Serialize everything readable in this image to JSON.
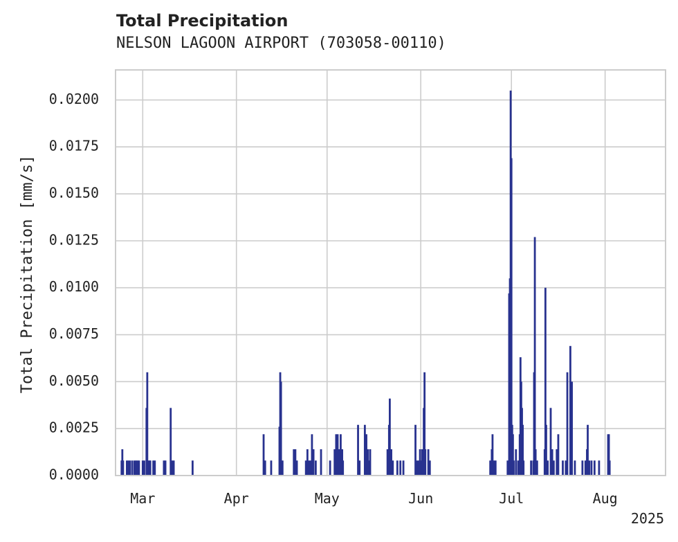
{
  "title": "Total Precipitation",
  "subtitle": "NELSON LAGOON AIRPORT (703058-00110)",
  "chart_data": {
    "type": "bar",
    "ylabel": "Total Precipitation [mm/s]",
    "xlabel": "",
    "ylim": [
      0,
      0.0216
    ],
    "xlim": [
      "2025-02-20",
      "2025-08-21"
    ],
    "grid": true,
    "color": "#28328f",
    "year_label": "2025",
    "x_ticks": [
      {
        "date": "2025-03-01",
        "label": "Mar"
      },
      {
        "date": "2025-04-01",
        "label": "Apr"
      },
      {
        "date": "2025-05-01",
        "label": "May"
      },
      {
        "date": "2025-06-01",
        "label": "Jun"
      },
      {
        "date": "2025-07-01",
        "label": "Jul"
      },
      {
        "date": "2025-08-01",
        "label": "Aug"
      }
    ],
    "y_ticks": [
      "0.0000",
      "0.0025",
      "0.0050",
      "0.0075",
      "0.0100",
      "0.0125",
      "0.0150",
      "0.0175",
      "0.0200"
    ],
    "series": [
      {
        "values": [
          [
            "2025-02-22T00:00",
            0.0008
          ],
          [
            "2025-02-22T06:00",
            0.0014
          ],
          [
            "2025-02-22T12:00",
            0.0008
          ],
          [
            "2025-02-23T18:00",
            0.0008
          ],
          [
            "2025-02-24T06:00",
            0.0008
          ],
          [
            "2025-02-24T18:00",
            0.0008
          ],
          [
            "2025-02-25T12:00",
            0.0008
          ],
          [
            "2025-02-26T06:00",
            0.0008
          ],
          [
            "2025-02-26T18:00",
            0.0008
          ],
          [
            "2025-02-27T06:00",
            0.0008
          ],
          [
            "2025-02-27T18:00",
            0.0008
          ],
          [
            "2025-03-01T00:00",
            0.0008
          ],
          [
            "2025-03-01T12:00",
            0.0008
          ],
          [
            "2025-03-02T06:00",
            0.0036
          ],
          [
            "2025-03-02T12:00",
            0.0055
          ],
          [
            "2025-03-02T18:00",
            0.0008
          ],
          [
            "2025-03-03T06:00",
            0.0008
          ],
          [
            "2025-03-03T12:00",
            0.0008
          ],
          [
            "2025-03-04T12:00",
            0.0008
          ],
          [
            "2025-03-05T00:00",
            0.0008
          ],
          [
            "2025-03-08T00:00",
            0.0008
          ],
          [
            "2025-03-08T12:00",
            0.0008
          ],
          [
            "2025-03-10T06:00",
            0.0036
          ],
          [
            "2025-03-10T18:00",
            0.0008
          ],
          [
            "2025-03-11T06:00",
            0.0008
          ],
          [
            "2025-03-17T12:00",
            0.0008
          ],
          [
            "2025-04-10T00:00",
            0.0022
          ],
          [
            "2025-04-10T12:00",
            0.0008
          ],
          [
            "2025-04-12T12:00",
            0.0008
          ],
          [
            "2025-04-15T06:00",
            0.0026
          ],
          [
            "2025-04-15T12:00",
            0.0055
          ],
          [
            "2025-04-15T18:00",
            0.005
          ],
          [
            "2025-04-16T06:00",
            0.0008
          ],
          [
            "2025-04-20T00:00",
            0.0014
          ],
          [
            "2025-04-20T12:00",
            0.0014
          ],
          [
            "2025-04-21T00:00",
            0.0008
          ],
          [
            "2025-04-24T00:00",
            0.0008
          ],
          [
            "2025-04-24T12:00",
            0.0014
          ],
          [
            "2025-04-25T00:00",
            0.0008
          ],
          [
            "2025-04-25T12:00",
            0.0008
          ],
          [
            "2025-04-26T00:00",
            0.0022
          ],
          [
            "2025-04-26T12:00",
            0.0014
          ],
          [
            "2025-04-27T06:00",
            0.0008
          ],
          [
            "2025-04-29T00:00",
            0.0014
          ],
          [
            "2025-05-02T00:00",
            0.0008
          ],
          [
            "2025-05-03T12:00",
            0.0014
          ],
          [
            "2025-05-04T00:00",
            0.0022
          ],
          [
            "2025-05-04T12:00",
            0.0022
          ],
          [
            "2025-05-05T00:00",
            0.0014
          ],
          [
            "2025-05-05T12:00",
            0.0022
          ],
          [
            "2025-05-06T00:00",
            0.0014
          ],
          [
            "2025-05-06T06:00",
            0.0008
          ],
          [
            "2025-05-11T06:00",
            0.0027
          ],
          [
            "2025-05-11T18:00",
            0.0008
          ],
          [
            "2025-05-13T12:00",
            0.0027
          ],
          [
            "2025-05-14T00:00",
            0.0022
          ],
          [
            "2025-05-14T12:00",
            0.0014
          ],
          [
            "2025-05-15T00:00",
            0.0008
          ],
          [
            "2025-05-15T06:00",
            0.0014
          ],
          [
            "2025-05-21T00:00",
            0.0014
          ],
          [
            "2025-05-21T12:00",
            0.0027
          ],
          [
            "2025-05-21T18:00",
            0.0041
          ],
          [
            "2025-05-22T06:00",
            0.0014
          ],
          [
            "2025-05-22T18:00",
            0.0008
          ],
          [
            "2025-05-24T06:00",
            0.0008
          ],
          [
            "2025-05-25T06:00",
            0.0008
          ],
          [
            "2025-05-26T06:00",
            0.0008
          ],
          [
            "2025-05-30T06:00",
            0.0027
          ],
          [
            "2025-05-30T18:00",
            0.0008
          ],
          [
            "2025-05-31T06:00",
            0.0008
          ],
          [
            "2025-05-31T18:00",
            0.0014
          ],
          [
            "2025-06-01T06:00",
            0.0008
          ],
          [
            "2025-06-01T12:00",
            0.0014
          ],
          [
            "2025-06-02T00:00",
            0.0036
          ],
          [
            "2025-06-02T06:00",
            0.0055
          ],
          [
            "2025-06-02T12:00",
            0.0014
          ],
          [
            "2025-06-03T12:00",
            0.0014
          ],
          [
            "2025-06-04T00:00",
            0.0008
          ],
          [
            "2025-06-24T00:00",
            0.0008
          ],
          [
            "2025-06-24T12:00",
            0.0014
          ],
          [
            "2025-06-24T18:00",
            0.0022
          ],
          [
            "2025-06-25T06:00",
            0.0008
          ],
          [
            "2025-06-25T18:00",
            0.0008
          ],
          [
            "2025-06-29T18:00",
            0.0008
          ],
          [
            "2025-06-30T06:00",
            0.0097
          ],
          [
            "2025-06-30T12:00",
            0.0105
          ],
          [
            "2025-06-30T18:00",
            0.0205
          ],
          [
            "2025-07-01T00:00",
            0.0169
          ],
          [
            "2025-07-01T06:00",
            0.0027
          ],
          [
            "2025-07-01T12:00",
            0.0022
          ],
          [
            "2025-07-01T18:00",
            0.0008
          ],
          [
            "2025-07-02T12:00",
            0.0014
          ],
          [
            "2025-07-03T06:00",
            0.0008
          ],
          [
            "2025-07-03T18:00",
            0.0022
          ],
          [
            "2025-07-04T00:00",
            0.0063
          ],
          [
            "2025-07-04T06:00",
            0.005
          ],
          [
            "2025-07-04T12:00",
            0.0036
          ],
          [
            "2025-07-04T18:00",
            0.0027
          ],
          [
            "2025-07-05T00:00",
            0.0008
          ],
          [
            "2025-07-07T12:00",
            0.0008
          ],
          [
            "2025-07-08T06:00",
            0.0008
          ],
          [
            "2025-07-08T12:00",
            0.0055
          ],
          [
            "2025-07-08T18:00",
            0.0127
          ],
          [
            "2025-07-09T00:00",
            0.0014
          ],
          [
            "2025-07-09T12:00",
            0.0008
          ],
          [
            "2025-07-12T00:00",
            0.0014
          ],
          [
            "2025-07-12T06:00",
            0.01
          ],
          [
            "2025-07-12T12:00",
            0.0027
          ],
          [
            "2025-07-13T00:00",
            0.0008
          ],
          [
            "2025-07-14T00:00",
            0.0036
          ],
          [
            "2025-07-14T12:00",
            0.0014
          ],
          [
            "2025-07-15T00:00",
            0.0008
          ],
          [
            "2025-07-16T00:00",
            0.0014
          ],
          [
            "2025-07-16T12:00",
            0.0022
          ],
          [
            "2025-07-18T00:00",
            0.0008
          ],
          [
            "2025-07-19T00:00",
            0.0008
          ],
          [
            "2025-07-19T12:00",
            0.0055
          ],
          [
            "2025-07-20T12:00",
            0.0069
          ],
          [
            "2025-07-21T00:00",
            0.005
          ],
          [
            "2025-07-22T00:00",
            0.0008
          ],
          [
            "2025-07-24T12:00",
            0.0008
          ],
          [
            "2025-07-25T12:00",
            0.0008
          ],
          [
            "2025-07-26T00:00",
            0.0014
          ],
          [
            "2025-07-26T06:00",
            0.0027
          ],
          [
            "2025-07-26T18:00",
            0.0008
          ],
          [
            "2025-07-27T12:00",
            0.0008
          ],
          [
            "2025-07-28T12:00",
            0.0008
          ],
          [
            "2025-07-30T00:00",
            0.0008
          ],
          [
            "2025-08-02T00:00",
            0.0022
          ],
          [
            "2025-08-02T06:00",
            0.0022
          ],
          [
            "2025-08-02T12:00",
            0.0008
          ]
        ]
      }
    ]
  }
}
